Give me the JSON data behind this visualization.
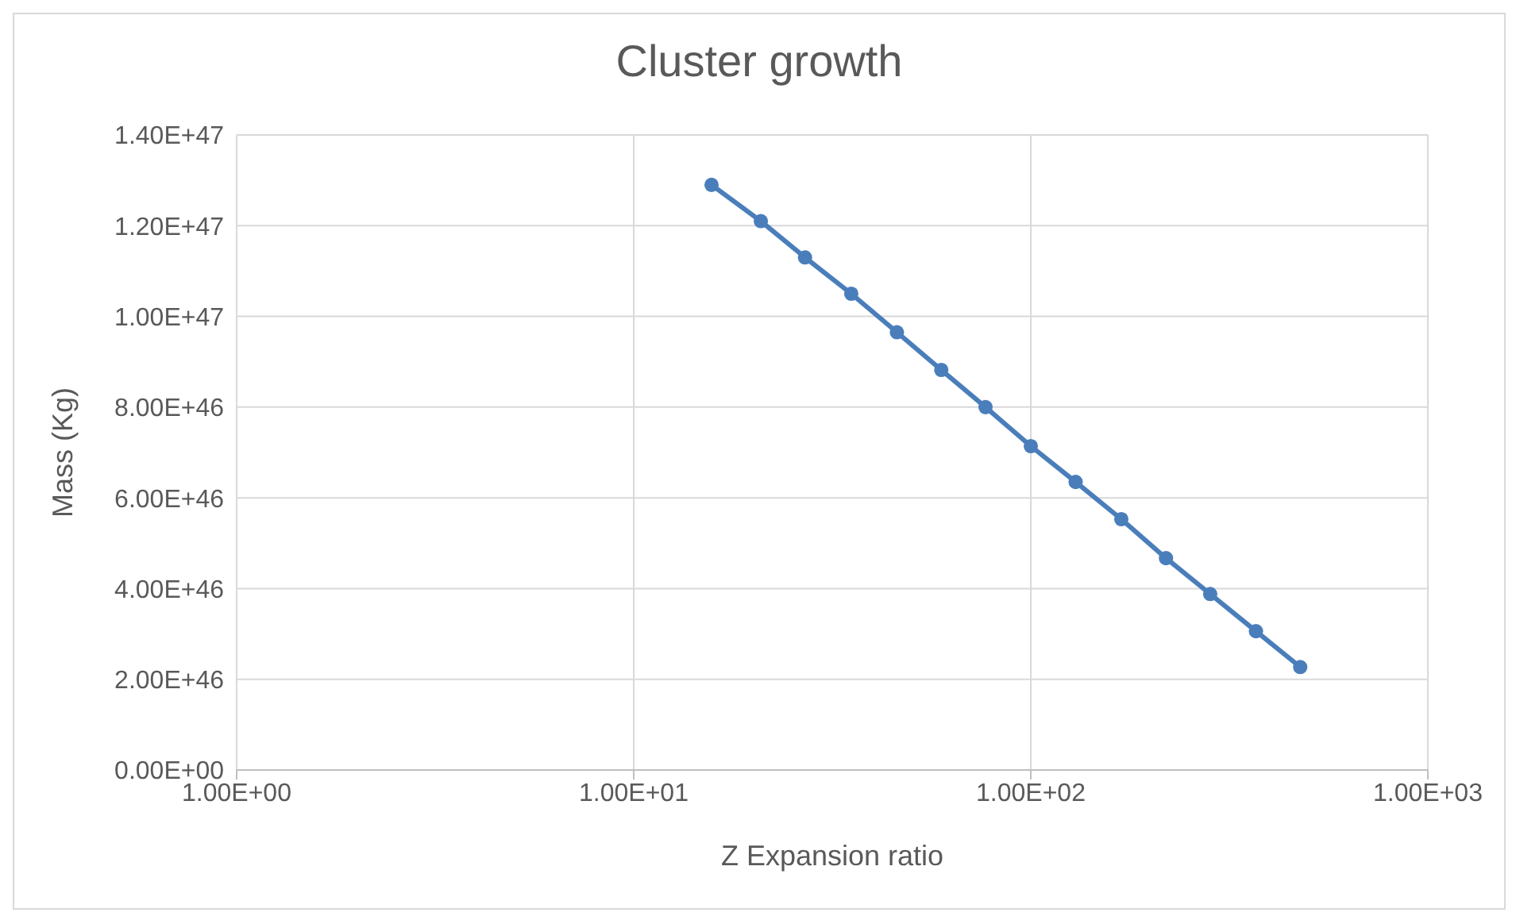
{
  "chart_data": {
    "type": "line",
    "title": "Cluster growth",
    "xlabel": "Z Expansion ratio",
    "ylabel": "Mass (Kg)",
    "log": "x",
    "grid": true,
    "legend": false,
    "marker": "circle",
    "line_style": "solid",
    "xlim": [
      1,
      1000
    ],
    "xticks": [
      {
        "value": 1,
        "label": "1.00E+00"
      },
      {
        "value": 10,
        "label": "1.00E+01"
      },
      {
        "value": 100,
        "label": "1.00E+02"
      },
      {
        "value": 1000,
        "label": "1.00E+03"
      }
    ],
    "ylim": [
      0,
      1.4e+47
    ],
    "yticks": [
      {
        "value": 0,
        "label": "0.00E+00"
      },
      {
        "value": 2e+46,
        "label": "2.00E+46"
      },
      {
        "value": 4e+46,
        "label": "4.00E+46"
      },
      {
        "value": 6e+46,
        "label": "6.00E+46"
      },
      {
        "value": 8e+46,
        "label": "8.00E+46"
      },
      {
        "value": 1e+47,
        "label": "1.00E+47"
      },
      {
        "value": 1.2e+47,
        "label": "1.20E+47"
      },
      {
        "value": 1.4e+47,
        "label": "1.40E+47"
      }
    ],
    "x": [
      15.7,
      20.9,
      27,
      35.3,
      46,
      59.5,
      76.9,
      100,
      129.7,
      169,
      219,
      283,
      369,
      477
    ],
    "series": [
      {
        "color": "#4a7ebb",
        "values": [
          1.29e+47,
          1.21e+47,
          1.13e+47,
          1.05e+47,
          9.65e+46,
          8.82e+46,
          8e+46,
          7.14e+46,
          6.35e+46,
          5.53e+46,
          4.67e+46,
          3.88e+46,
          3.06e+46,
          2.27e+46
        ]
      }
    ]
  }
}
